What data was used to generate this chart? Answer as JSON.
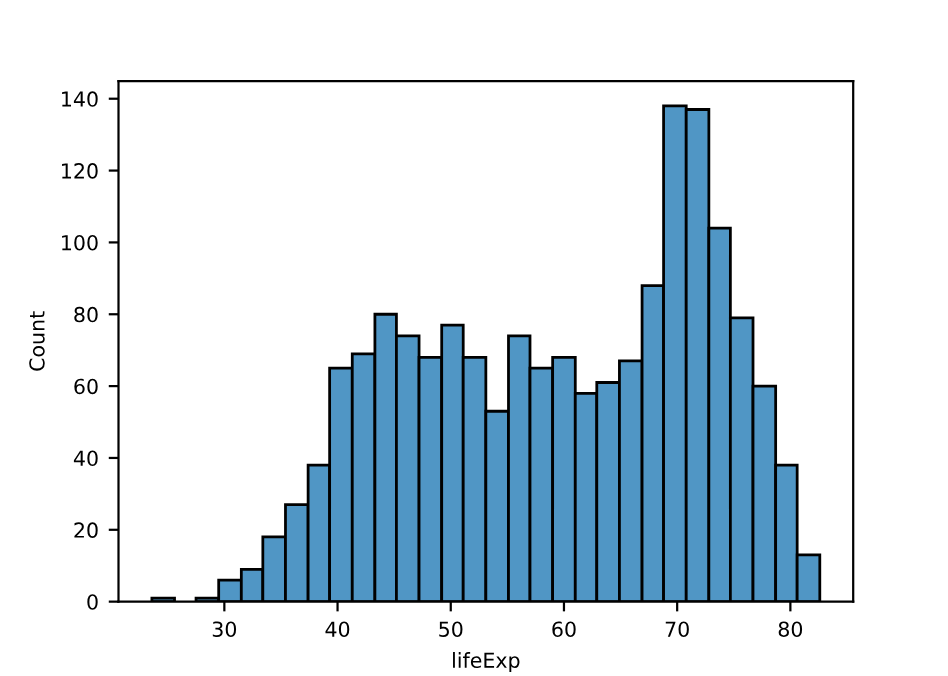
{
  "chart_data": {
    "type": "histogram",
    "xlabel": "lifeExp",
    "ylabel": "Count",
    "color": "#5096c5",
    "bins": [
      23.6,
      25.6,
      27.5,
      29.5,
      31.5,
      33.4,
      35.4,
      37.4,
      39.3,
      41.3,
      43.3,
      45.2,
      47.2,
      49.2,
      51.1,
      53.1,
      55.1,
      57.0,
      59.0,
      61.0,
      62.9,
      64.9,
      66.9,
      68.8,
      70.8,
      72.8,
      74.7,
      76.7,
      78.7,
      80.6,
      82.6
    ],
    "values": [
      1,
      0,
      1,
      6,
      9,
      18,
      27,
      38,
      65,
      69,
      80,
      74,
      68,
      77,
      68,
      53,
      74,
      65,
      68,
      58,
      61,
      67,
      88,
      138,
      137,
      104,
      79,
      60,
      38,
      13
    ],
    "xlim": [
      20.65,
      85.55
    ],
    "xticks": [
      30,
      40,
      50,
      60,
      70,
      80
    ],
    "ylim": [
      0,
      144.9
    ],
    "yticks": [
      0,
      20,
      40,
      60,
      80,
      100,
      120,
      140
    ],
    "grid": false
  }
}
